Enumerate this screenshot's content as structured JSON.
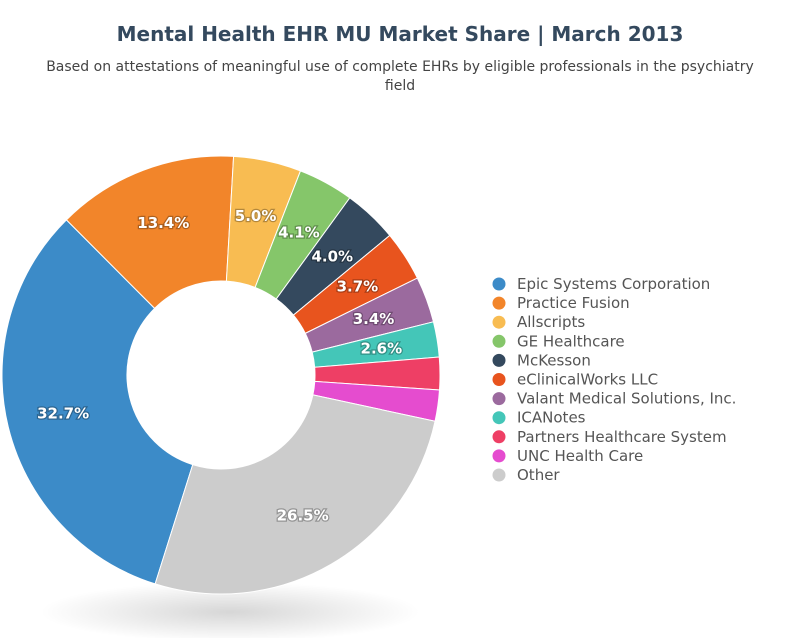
{
  "chart_data": {
    "type": "pie",
    "title": "Mental Health EHR MU Market Share | March 2013",
    "subtitle": "Based on attestations of meaningful use of complete EHRs by eligible professionals in the psychiatry field",
    "legend_position": "right",
    "series": [
      {
        "values": [
          {
            "label": "Epic Systems Corporation",
            "value": 32.7,
            "display": "32.7%",
            "color": "#3c8bc8"
          },
          {
            "label": "Practice Fusion",
            "value": 13.4,
            "display": "13.4%",
            "color": "#f2852a"
          },
          {
            "label": "Allscripts",
            "value": 5.0,
            "display": "5.0%",
            "color": "#f8bc52"
          },
          {
            "label": "GE Healthcare",
            "value": 4.1,
            "display": "4.1%",
            "color": "#85c66a"
          },
          {
            "label": "McKesson",
            "value": 4.0,
            "display": "4.0%",
            "color": "#34495e"
          },
          {
            "label": "eClinicalWorks LLC",
            "value": 3.7,
            "display": "3.7%",
            "color": "#e8541e"
          },
          {
            "label": "Valant Medical Solutions, Inc.",
            "value": 3.4,
            "display": "3.4%",
            "color": "#9b6a9e"
          },
          {
            "label": "ICANotes",
            "value": 2.6,
            "display": "2.6%",
            "color": "#44c6b8"
          },
          {
            "label": "Partners Healthcare System",
            "value": 2.4,
            "display": "",
            "color": "#ee3f65"
          },
          {
            "label": "UNC Health Care",
            "value": 2.3,
            "display": "",
            "color": "#e54ccf"
          },
          {
            "label": "Other",
            "value": 26.5,
            "display": "26.5%",
            "color": "#cccccc"
          }
        ]
      }
    ]
  }
}
